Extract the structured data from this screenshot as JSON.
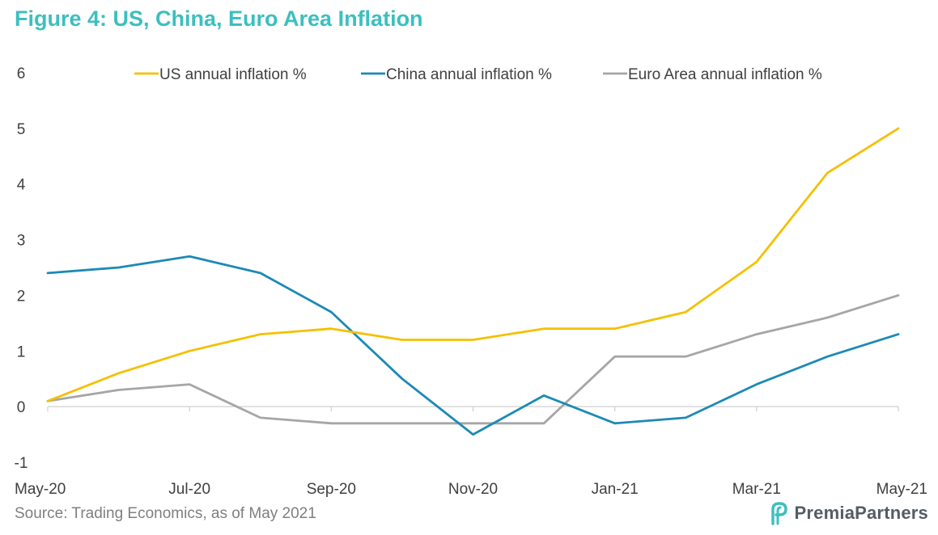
{
  "title": "Figure 4: US, China, Euro Area Inflation",
  "source": "Source: Trading Economics, as of May 2021",
  "brand": {
    "name": "PremiaPartners",
    "logo_icon": "premia-logo-icon"
  },
  "colors": {
    "us": "#f5c000",
    "china": "#1c8ab5",
    "euro": "#a6a6a6"
  },
  "chart_data": {
    "type": "line",
    "title": "Figure 4: US, China, Euro Area Inflation",
    "xlabel": "",
    "ylabel": "",
    "x": [
      "May-20",
      "Jun-20",
      "Jul-20",
      "Aug-20",
      "Sep-20",
      "Oct-20",
      "Nov-20",
      "Dec-20",
      "Jan-21",
      "Feb-21",
      "Mar-21",
      "Apr-21",
      "May-21"
    ],
    "x_tick_labels": [
      "May-20",
      "Jul-20",
      "Sep-20",
      "Nov-20",
      "Jan-21",
      "Mar-21",
      "May-21"
    ],
    "y_ticks": [
      "-1",
      "0",
      "1",
      "2",
      "3",
      "4",
      "5",
      "6"
    ],
    "ylim": [
      -1,
      6
    ],
    "grid": false,
    "legend_position": "top",
    "series": [
      {
        "name": "US annual inflation %",
        "values": [
          0.1,
          0.6,
          1.0,
          1.3,
          1.4,
          1.2,
          1.2,
          1.4,
          1.4,
          1.7,
          2.6,
          4.2,
          5.0
        ]
      },
      {
        "name": "China annual inflation %",
        "values": [
          2.4,
          2.5,
          2.7,
          2.4,
          1.7,
          0.5,
          -0.5,
          0.2,
          -0.3,
          -0.2,
          0.4,
          0.9,
          1.3
        ]
      },
      {
        "name": "Euro Area annual inflation %",
        "values": [
          0.1,
          0.3,
          0.4,
          -0.2,
          -0.3,
          -0.3,
          -0.3,
          -0.3,
          0.9,
          0.9,
          1.3,
          1.6,
          2.0
        ]
      }
    ]
  }
}
